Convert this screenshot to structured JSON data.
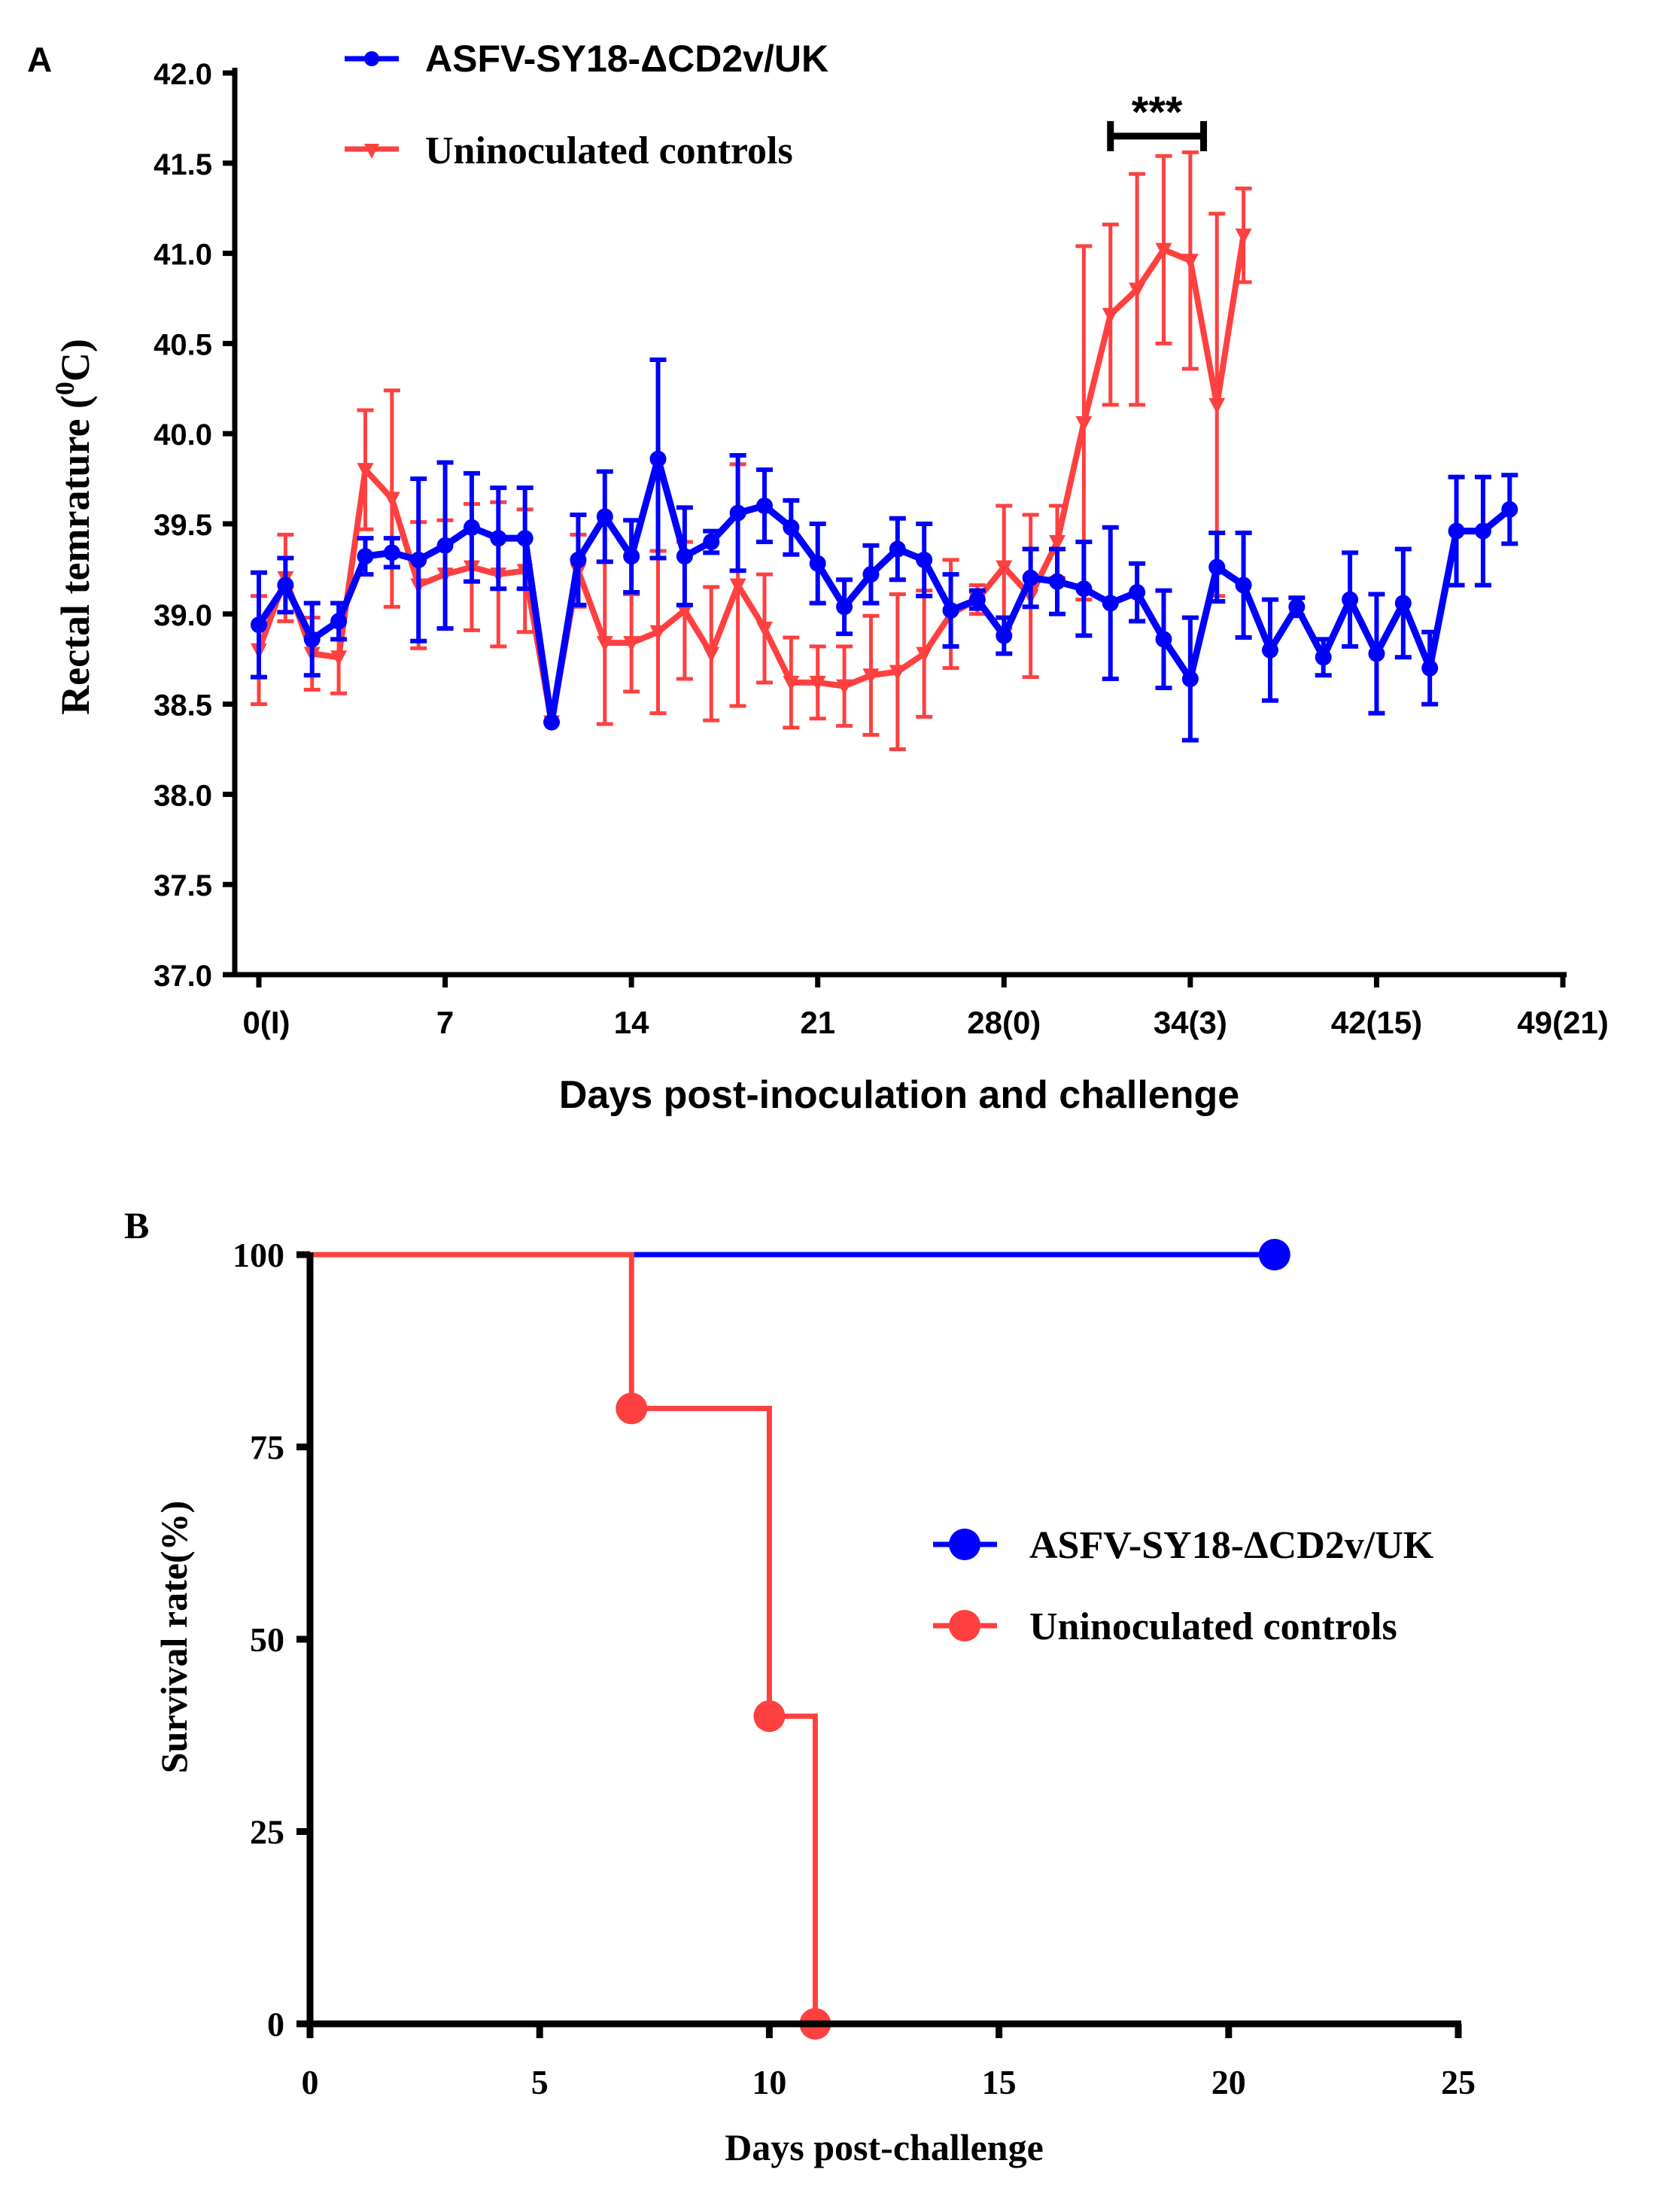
{
  "chart_data": [
    {
      "type": "line",
      "panel_label": "A",
      "title": "",
      "xlabel": "Days post-inoculation and challenge",
      "ylabel": "Rectal temrature (",
      "ylabel_sup": "0",
      "ylabel_end": "C)",
      "xlim": [
        0,
        49
      ],
      "ylim": [
        37.0,
        42.0
      ],
      "x_ticks": [
        0,
        7,
        14,
        21,
        28,
        35,
        42,
        49
      ],
      "x_tick_labels": [
        "0(I)",
        "7",
        "14",
        "21",
        "28(0)",
        "34(3)",
        "42(15)",
        "49(21)"
      ],
      "y_ticks": [
        37.0,
        37.5,
        38.0,
        38.5,
        39.0,
        39.5,
        40.0,
        40.5,
        41.0,
        41.5,
        42.0
      ],
      "y_tick_labels": [
        "37.0",
        "37.5",
        "38.0",
        "38.5",
        "39.0",
        "39.5",
        "40.0",
        "40.5",
        "41.0",
        "41.5",
        "42.0"
      ],
      "legend_position": "top-left",
      "annotation": {
        "text": "***",
        "x_range": [
          32,
          35.5
        ],
        "y": 41.65
      },
      "series": [
        {
          "name": "ASFV-SY18-ΔCD2v/UK",
          "color": "#0000ff",
          "marker": "circle",
          "x": [
            0,
            1,
            2,
            3,
            4,
            5,
            6,
            7,
            8,
            9,
            10,
            11,
            12,
            13,
            14,
            15,
            16,
            17,
            18,
            19,
            20,
            21,
            22,
            23,
            24,
            25,
            26,
            27,
            28,
            29,
            30,
            31,
            32,
            33,
            34,
            35,
            36,
            37,
            38,
            39,
            40,
            41,
            42,
            43,
            44,
            45,
            46,
            47
          ],
          "values": [
            38.94,
            39.16,
            38.86,
            38.96,
            39.32,
            39.34,
            39.3,
            39.38,
            39.48,
            39.42,
            39.42,
            38.4,
            39.3,
            39.54,
            39.32,
            39.86,
            39.32,
            39.4,
            39.56,
            39.6,
            39.48,
            39.28,
            39.04,
            39.22,
            39.36,
            39.3,
            39.02,
            39.08,
            38.88,
            39.2,
            39.18,
            39.14,
            39.06,
            39.12,
            38.86,
            38.64,
            39.26,
            39.16,
            38.8,
            39.04,
            38.76,
            39.08,
            38.78,
            39.06,
            38.7,
            39.46,
            39.46,
            39.58
          ],
          "error": [
            0.29,
            0.15,
            0.2,
            0.1,
            0.1,
            0.08,
            0.45,
            0.46,
            0.3,
            0.28,
            0.28,
            0,
            0.25,
            0.25,
            0.2,
            0.55,
            0.27,
            0.06,
            0.32,
            0.2,
            0.15,
            0.22,
            0.15,
            0.16,
            0.17,
            0.2,
            0.2,
            0.05,
            0.1,
            0.16,
            0.18,
            0.26,
            0.42,
            0.16,
            0.27,
            0.34,
            0.19,
            0.29,
            0.28,
            0.05,
            0.1,
            0.26,
            0.33,
            0.3,
            0.2,
            0.3,
            0.3,
            0.19
          ]
        },
        {
          "name": "Uninoculated controls",
          "color": "#ff4040",
          "marker": "triangle-down",
          "x": [
            0,
            1,
            2,
            3,
            4,
            5,
            6,
            7,
            8,
            9,
            10,
            11,
            12,
            13,
            14,
            15,
            16,
            17,
            18,
            19,
            20,
            21,
            22,
            23,
            24,
            25,
            26,
            27,
            28,
            29,
            30,
            31,
            32,
            33,
            34,
            35,
            36,
            37
          ],
          "values": [
            38.8,
            39.2,
            38.78,
            38.76,
            39.8,
            39.64,
            39.16,
            39.22,
            39.26,
            39.22,
            39.24,
            38.4,
            39.24,
            38.84,
            38.84,
            38.9,
            39.02,
            38.78,
            39.16,
            38.92,
            38.62,
            38.62,
            38.6,
            38.66,
            38.68,
            38.78,
            39.0,
            39.08,
            39.26,
            39.1,
            39.4,
            40.06,
            40.66,
            40.8,
            41.02,
            40.96,
            40.16,
            41.1
          ],
          "error": [
            0.3,
            0.24,
            0.2,
            0.2,
            0.33,
            0.6,
            0.35,
            0.3,
            0.35,
            0.4,
            0.34,
            0,
            0.2,
            0.45,
            0.27,
            0.45,
            0.38,
            0.37,
            0.67,
            0.3,
            0.25,
            0.2,
            0.22,
            0.33,
            0.43,
            0.35,
            0.3,
            0.08,
            0.34,
            0.45,
            0.2,
            0.98,
            0.5,
            0.64,
            0.52,
            0.6,
            1.06,
            0.26
          ]
        }
      ]
    },
    {
      "type": "line",
      "subtype": "survival-step",
      "panel_label": "B",
      "title": "",
      "xlabel": "Days post-challenge",
      "ylabel": "Survival rate(%)",
      "xlim": [
        0,
        25
      ],
      "ylim": [
        0,
        100
      ],
      "x_ticks": [
        0,
        5,
        10,
        15,
        20,
        25
      ],
      "x_tick_labels": [
        "0",
        "5",
        "10",
        "15",
        "20",
        "25"
      ],
      "y_ticks": [
        0,
        25,
        50,
        75,
        100
      ],
      "y_tick_labels": [
        "0",
        "25",
        "50",
        "75",
        "100"
      ],
      "legend_position": "center-right",
      "series": [
        {
          "name": "ASFV-SY18-ΔCD2v/UK",
          "color": "#0000ff",
          "x": [
            0,
            21
          ],
          "values": [
            100,
            100
          ],
          "markers": [
            [
              21,
              100
            ]
          ]
        },
        {
          "name": "Uninoculated controls",
          "color": "#ff4040",
          "x": [
            0,
            7,
            10,
            11
          ],
          "values": [
            100,
            80,
            40,
            0
          ],
          "markers": [
            [
              7,
              80
            ],
            [
              10,
              40
            ],
            [
              11,
              0
            ]
          ]
        }
      ]
    }
  ]
}
